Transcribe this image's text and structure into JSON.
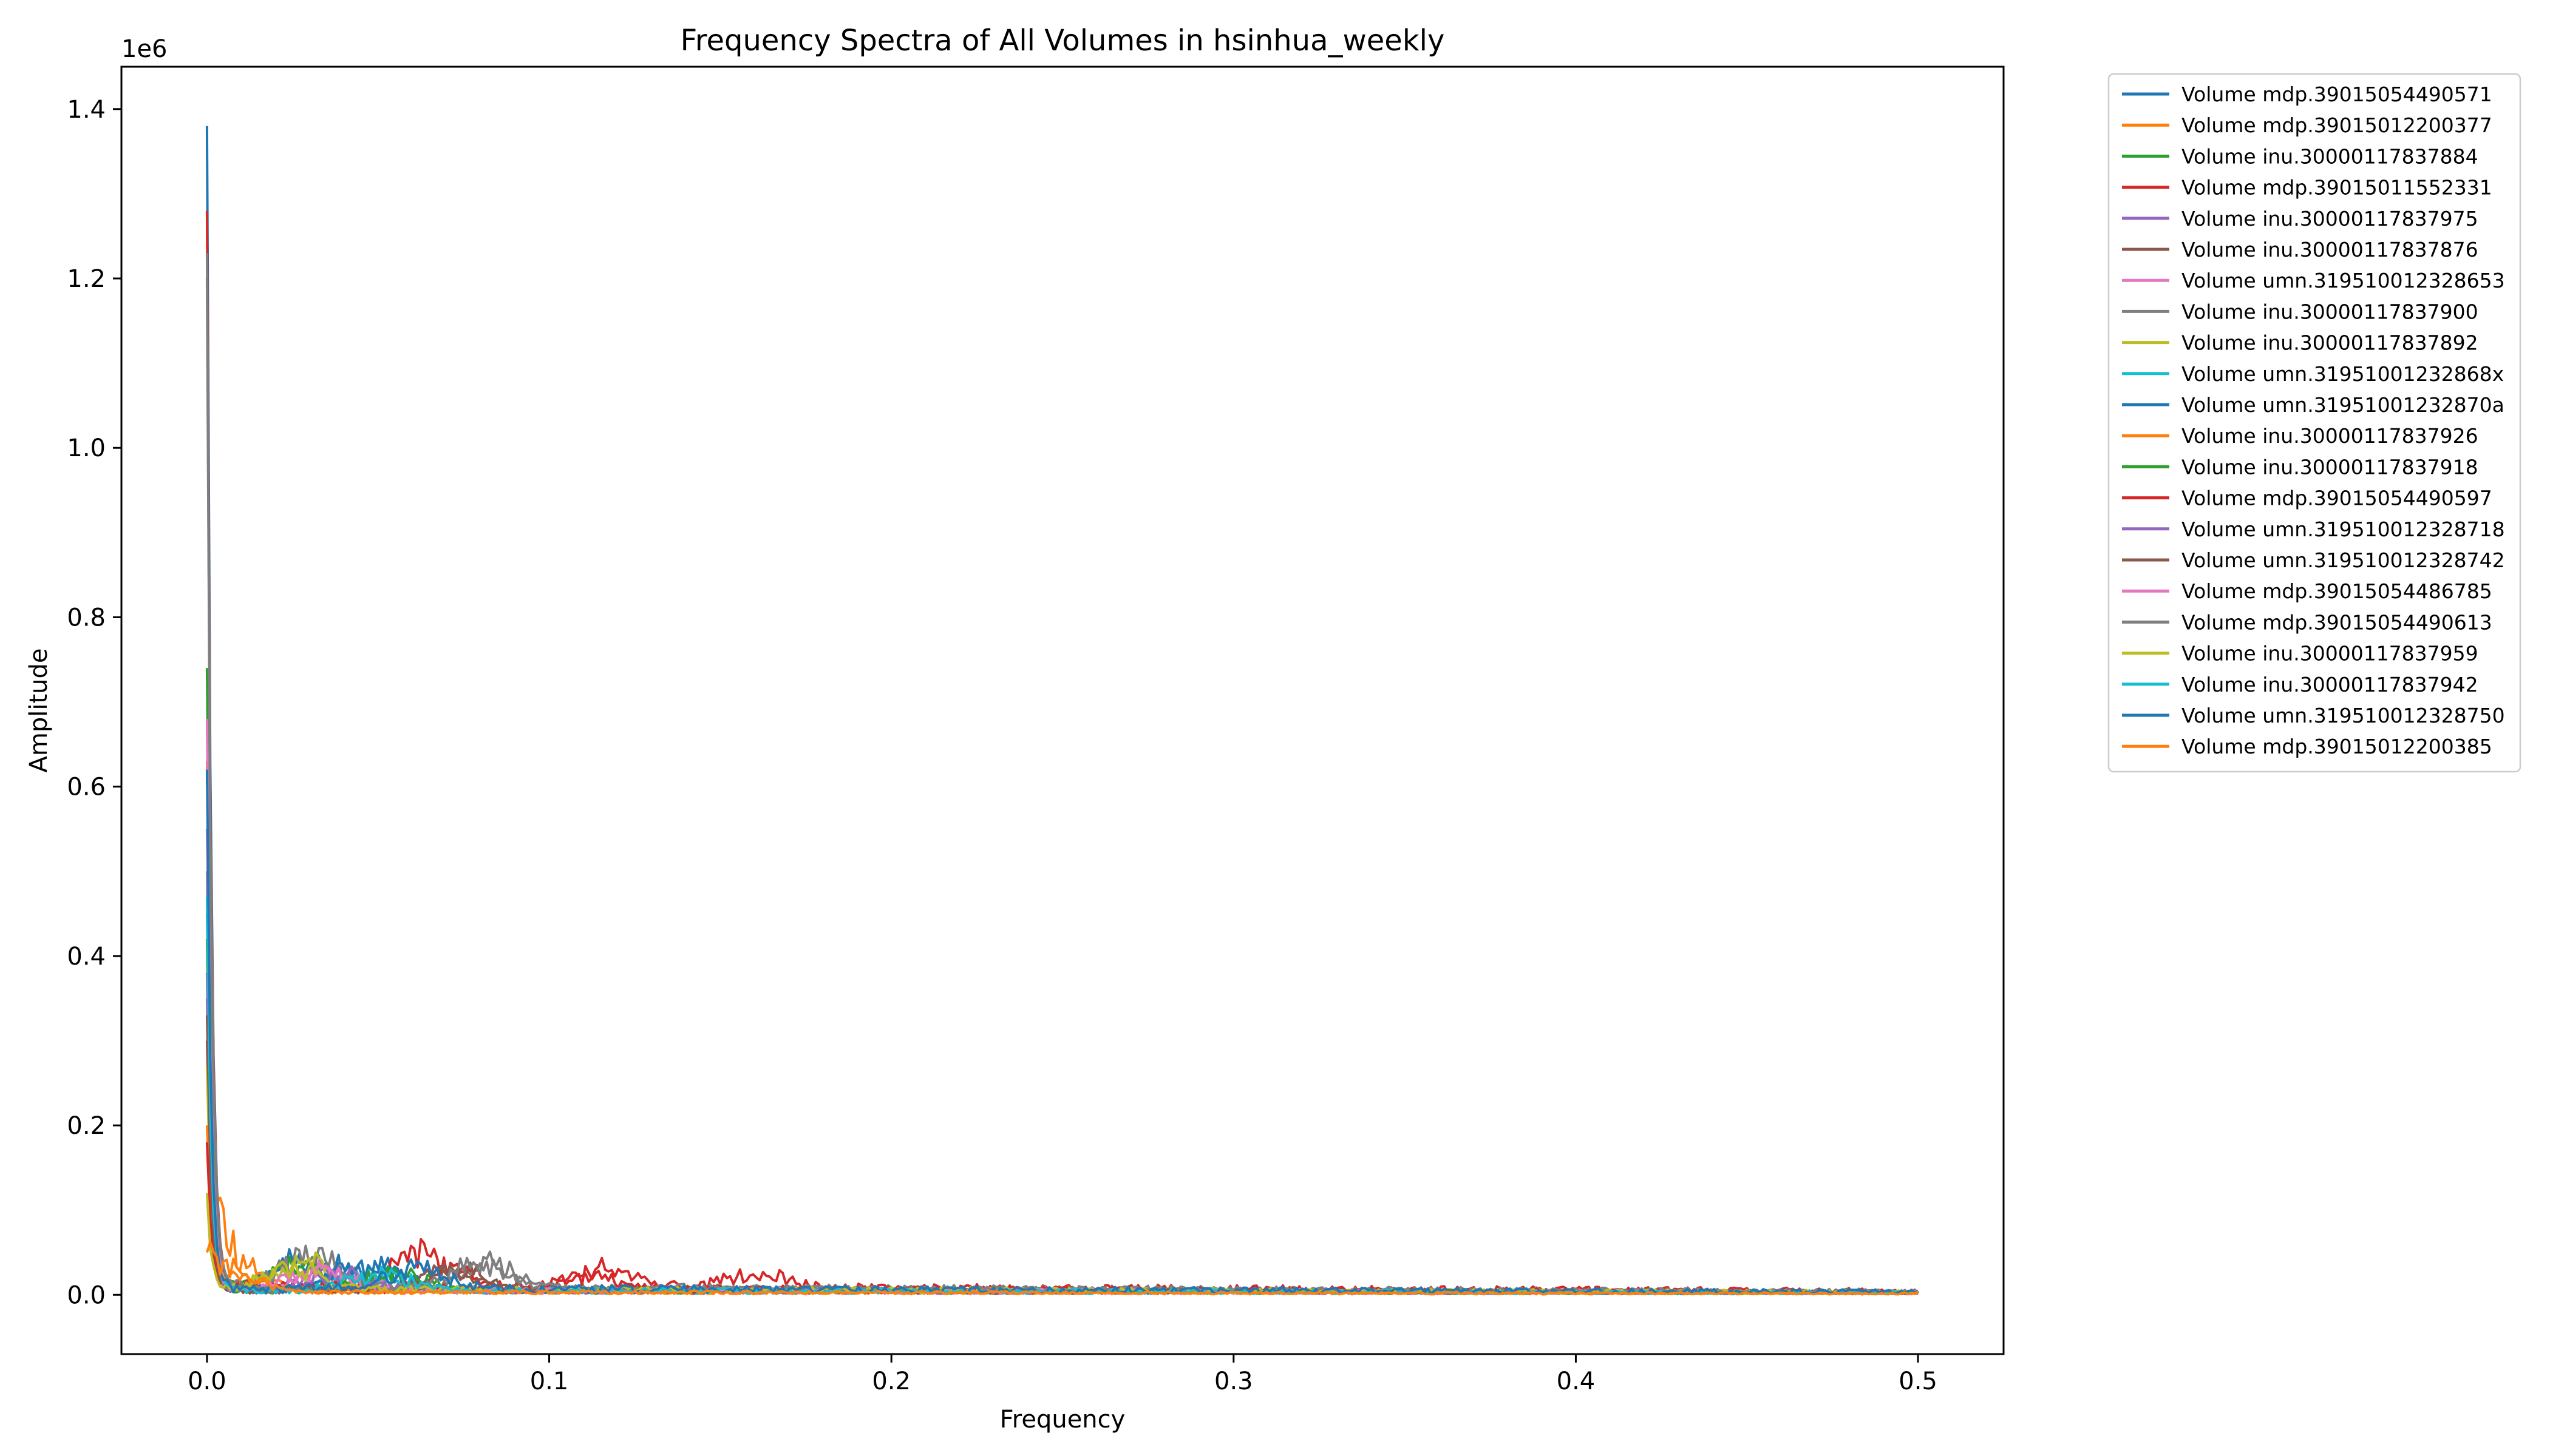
{
  "chart_data": {
    "type": "line",
    "title": "Frequency Spectra of All Volumes in hsinhua_weekly",
    "xlabel": "Frequency",
    "ylabel": "Amplitude",
    "y_offset_label": "1e6",
    "xlim": [
      -0.025,
      0.525
    ],
    "ylim": [
      -0.07,
      1.45
    ],
    "y_scale_multiplier": 1000000,
    "x_ticks": [
      0.0,
      0.1,
      0.2,
      0.3,
      0.4,
      0.5
    ],
    "x_tick_labels": [
      "0.0",
      "0.1",
      "0.2",
      "0.3",
      "0.4",
      "0.5"
    ],
    "y_ticks": [
      0.0,
      0.2,
      0.4,
      0.6,
      0.8,
      1.0,
      1.2,
      1.4
    ],
    "y_tick_labels": [
      "0.0",
      "0.2",
      "0.4",
      "0.6",
      "0.8",
      "1.0",
      "1.2",
      "1.4"
    ],
    "grid": false,
    "legend_position": "outside-right",
    "series": [
      {
        "name": "Volume mdp.39015054490571",
        "color": "#1f77b4",
        "peak": 1.38,
        "tail": 0.006,
        "bumps": [
          [
            0.028,
            0.045
          ],
          [
            0.05,
            0.03
          ]
        ]
      },
      {
        "name": "Volume mdp.39015012200377",
        "color": "#ff7f0e",
        "peak": 0.63,
        "tail": 0.004,
        "bumps": [
          [
            0.004,
            0.08
          ]
        ]
      },
      {
        "name": "Volume inu.30000117837884",
        "color": "#2ca02c",
        "peak": 0.74,
        "tail": 0.006,
        "bumps": [
          [
            0.025,
            0.035
          ]
        ]
      },
      {
        "name": "Volume mdp.39015011552331",
        "color": "#d62728",
        "peak": 1.28,
        "tail": 0.009,
        "bumps": [
          [
            0.063,
            0.05
          ],
          [
            0.117,
            0.03
          ],
          [
            0.16,
            0.02
          ]
        ]
      },
      {
        "name": "Volume inu.30000117837975",
        "color": "#9467bd",
        "peak": 0.35,
        "tail": 0.005,
        "bumps": [
          [
            0.035,
            0.025
          ]
        ]
      },
      {
        "name": "Volume inu.30000117837876",
        "color": "#8c564b",
        "peak": 0.3,
        "tail": 0.005,
        "bumps": [
          [
            0.07,
            0.03
          ]
        ]
      },
      {
        "name": "Volume umn.319510012328653",
        "color": "#e377c2",
        "peak": 0.68,
        "tail": 0.006,
        "bumps": [
          [
            0.037,
            0.03
          ]
        ]
      },
      {
        "name": "Volume inu.30000117837900",
        "color": "#7f7f7f",
        "peak": 1.23,
        "tail": 0.008,
        "bumps": [
          [
            0.03,
            0.05
          ],
          [
            0.082,
            0.03
          ]
        ]
      },
      {
        "name": "Volume inu.30000117837892",
        "color": "#bcbd22",
        "peak": 0.27,
        "tail": 0.006,
        "bumps": [
          [
            0.027,
            0.04
          ]
        ]
      },
      {
        "name": "Volume umn.31951001232868x",
        "color": "#17becf",
        "peak": 0.45,
        "tail": 0.005,
        "bumps": [
          [
            0.045,
            0.025
          ]
        ]
      },
      {
        "name": "Volume umn.31951001232870a",
        "color": "#1f77b4",
        "peak": 0.5,
        "tail": 0.006,
        "bumps": [
          [
            0.047,
            0.04
          ]
        ]
      },
      {
        "name": "Volume inu.30000117837926",
        "color": "#ff7f0e",
        "peak": 0.2,
        "tail": 0.004,
        "bumps": [
          [
            0.01,
            0.02
          ]
        ]
      },
      {
        "name": "Volume inu.30000117837918",
        "color": "#2ca02c",
        "peak": 0.42,
        "tail": 0.005,
        "bumps": [
          [
            0.055,
            0.03
          ]
        ]
      },
      {
        "name": "Volume mdp.39015054490597",
        "color": "#d62728",
        "peak": 0.18,
        "tail": 0.007,
        "bumps": [
          [
            0.11,
            0.02
          ]
        ]
      },
      {
        "name": "Volume umn.319510012328718",
        "color": "#9467bd",
        "peak": 0.38,
        "tail": 0.005,
        "bumps": [
          [
            0.04,
            0.025
          ]
        ]
      },
      {
        "name": "Volume umn.319510012328742",
        "color": "#8c564b",
        "peak": 0.33,
        "tail": 0.005,
        "bumps": [
          [
            0.075,
            0.03
          ]
        ]
      },
      {
        "name": "Volume mdp.39015054486785",
        "color": "#e377c2",
        "peak": 0.55,
        "tail": 0.005,
        "bumps": [
          [
            0.033,
            0.03
          ]
        ]
      },
      {
        "name": "Volume mdp.39015054490613",
        "color": "#7f7f7f",
        "peak": 1.2,
        "tail": 0.007,
        "bumps": [
          [
            0.08,
            0.035
          ]
        ]
      },
      {
        "name": "Volume inu.30000117837959",
        "color": "#bcbd22",
        "peak": 0.12,
        "tail": 0.006,
        "bumps": [
          [
            0.026,
            0.03
          ]
        ]
      },
      {
        "name": "Volume inu.30000117837942",
        "color": "#17becf",
        "peak": 0.47,
        "tail": 0.005,
        "bumps": [
          [
            0.05,
            0.025
          ]
        ]
      },
      {
        "name": "Volume umn.319510012328750",
        "color": "#1f77b4",
        "peak": 0.62,
        "tail": 0.007,
        "bumps": [
          [
            0.06,
            0.03
          ]
        ]
      },
      {
        "name": "Volume mdp.39015012200385",
        "color": "#ff7f0e",
        "peak": 0.05,
        "tail": 0.003,
        "bumps": [
          [
            0.005,
            0.04
          ]
        ]
      }
    ]
  }
}
